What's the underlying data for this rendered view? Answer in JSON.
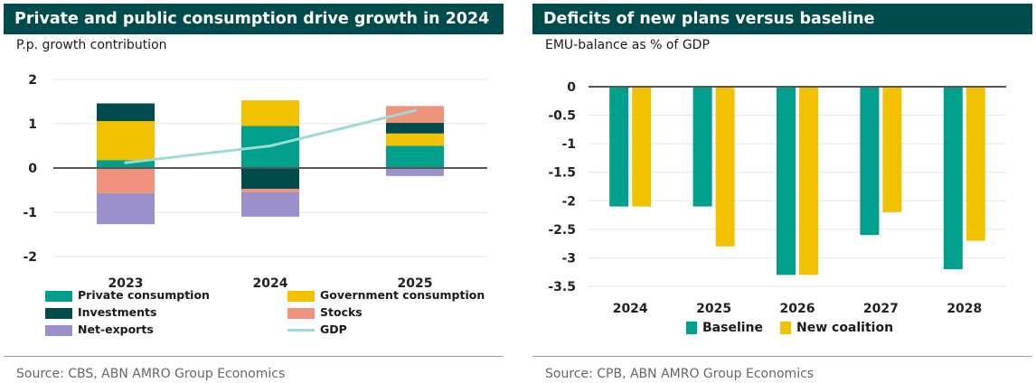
{
  "left": {
    "title": "Private and public consumption drive growth in 2024",
    "subtitle": "P.p. growth contribution",
    "source": "Source: CBS, ABN AMRO Group Economics"
  },
  "right": {
    "title": "Deficits of new plans versus baseline",
    "subtitle": "EMU-balance as % of GDP",
    "source": "Source: CPB, ABN AMRO Group Economics"
  },
  "colors": {
    "private_consumption": "#00a08c",
    "government_consumption": "#f2c100",
    "investments": "#004c4c",
    "stocks": "#f0937d",
    "net_exports": "#9b90cc",
    "gdp": "#9cdcd2",
    "baseline": "#00a08c",
    "new_coalition": "#f2c100"
  },
  "chart_data": [
    {
      "type": "bar",
      "stacked": true,
      "title": "Private and public consumption drive growth in 2024",
      "ylabel": "P.p. growth contribution",
      "categories": [
        "2023",
        "2024",
        "2025"
      ],
      "ylim": [
        -2,
        2
      ],
      "yticks": [
        "2",
        "1",
        "0",
        "-1",
        "-2"
      ],
      "series": [
        {
          "name": "Private consumption",
          "type": "bar",
          "values": [
            0.18,
            0.95,
            0.5
          ]
        },
        {
          "name": "Government consumption",
          "type": "bar",
          "values": [
            0.88,
            0.58,
            0.28
          ]
        },
        {
          "name": "Investments",
          "type": "bar",
          "values": [
            0.4,
            -0.47,
            0.24
          ]
        },
        {
          "name": "Stocks",
          "type": "bar",
          "values": [
            -0.57,
            -0.08,
            0.38
          ]
        },
        {
          "name": "Net-exports",
          "type": "bar",
          "values": [
            -0.7,
            -0.55,
            -0.18
          ]
        },
        {
          "name": "GDP",
          "type": "line",
          "values": [
            0.12,
            0.5,
            1.3
          ]
        }
      ],
      "legend": [
        "Private consumption",
        "Government consumption",
        "Investments",
        "Stocks",
        "Net-exports",
        "GDP"
      ],
      "legend_placement": "bottom"
    },
    {
      "type": "bar",
      "title": "Deficits of new plans versus baseline",
      "ylabel": "EMU-balance as % of GDP",
      "categories": [
        "2024",
        "2025",
        "2026",
        "2027",
        "2028"
      ],
      "ylim": [
        -3.5,
        0
      ],
      "yticks": [
        "0",
        "-0.5",
        "-1",
        "-1.5",
        "-2",
        "-2.5",
        "-3",
        "-3.5"
      ],
      "series": [
        {
          "name": "Baseline",
          "values": [
            -2.1,
            -2.1,
            -3.3,
            -2.6,
            -3.2
          ]
        },
        {
          "name": "New coalition",
          "values": [
            -2.1,
            -2.8,
            -3.3,
            -2.2,
            -2.7
          ]
        }
      ],
      "legend_placement": "bottom"
    }
  ]
}
